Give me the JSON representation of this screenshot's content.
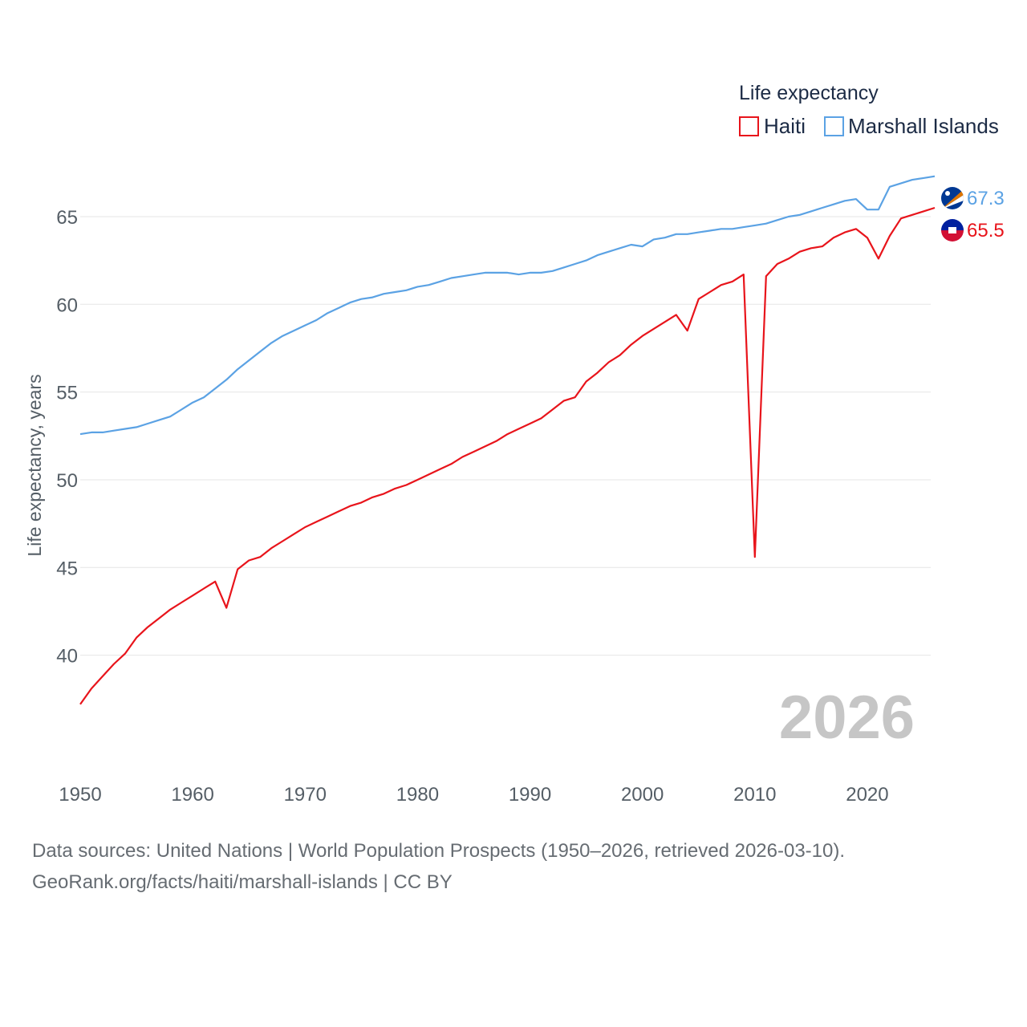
{
  "chart_data": {
    "type": "line",
    "legend": {
      "title": "Life expectancy",
      "position": "top-right"
    },
    "ylabel": "Life expectancy, years",
    "xlabel": "",
    "ylim": [
      35.5,
      68.2
    ],
    "xlim": [
      1950,
      2026
    ],
    "xticks": [
      1950,
      1960,
      1970,
      1980,
      1990,
      2000,
      2010,
      2020
    ],
    "yticks": [
      40,
      45,
      50,
      55,
      60,
      65
    ],
    "grid": true,
    "current_year": "2026",
    "x": [
      1950,
      1951,
      1952,
      1953,
      1954,
      1955,
      1956,
      1957,
      1958,
      1959,
      1960,
      1961,
      1962,
      1963,
      1964,
      1965,
      1966,
      1967,
      1968,
      1969,
      1970,
      1971,
      1972,
      1973,
      1974,
      1975,
      1976,
      1977,
      1978,
      1979,
      1980,
      1981,
      1982,
      1983,
      1984,
      1985,
      1986,
      1987,
      1988,
      1989,
      1990,
      1991,
      1992,
      1993,
      1994,
      1995,
      1996,
      1997,
      1998,
      1999,
      2000,
      2001,
      2002,
      2003,
      2004,
      2005,
      2006,
      2007,
      2008,
      2009,
      2010,
      2011,
      2012,
      2013,
      2014,
      2015,
      2016,
      2017,
      2018,
      2019,
      2020,
      2021,
      2022,
      2023,
      2024,
      2025,
      2026
    ],
    "series": [
      {
        "name": "Haiti",
        "color": "#e8141b",
        "end_label": "65.5",
        "flag_icon": "haiti-flag-icon",
        "values": [
          37.2,
          38.1,
          38.8,
          39.5,
          40.1,
          41.0,
          41.6,
          42.1,
          42.6,
          43.0,
          43.4,
          43.8,
          44.2,
          42.7,
          44.9,
          45.4,
          45.6,
          46.1,
          46.5,
          46.9,
          47.3,
          47.6,
          47.9,
          48.2,
          48.5,
          48.7,
          49.0,
          49.2,
          49.5,
          49.7,
          50.0,
          50.3,
          50.6,
          50.9,
          51.3,
          51.6,
          51.9,
          52.2,
          52.6,
          52.9,
          53.2,
          53.5,
          54.0,
          54.5,
          54.7,
          55.6,
          56.1,
          56.7,
          57.1,
          57.7,
          58.2,
          58.6,
          59.0,
          59.4,
          58.5,
          60.3,
          60.7,
          61.1,
          61.3,
          61.7,
          45.6,
          61.6,
          62.3,
          62.6,
          63.0,
          63.2,
          63.3,
          63.8,
          64.1,
          64.3,
          63.8,
          62.6,
          63.9,
          64.9,
          65.1,
          65.3,
          65.5
        ]
      },
      {
        "name": "Marshall Islands",
        "color": "#5ba2e4",
        "end_label": "67.3",
        "flag_icon": "marshall-islands-flag-icon",
        "values": [
          52.6,
          52.7,
          52.7,
          52.8,
          52.9,
          53.0,
          53.2,
          53.4,
          53.6,
          54.0,
          54.4,
          54.7,
          55.2,
          55.7,
          56.3,
          56.8,
          57.3,
          57.8,
          58.2,
          58.5,
          58.8,
          59.1,
          59.5,
          59.8,
          60.1,
          60.3,
          60.4,
          60.6,
          60.7,
          60.8,
          61.0,
          61.1,
          61.3,
          61.5,
          61.6,
          61.7,
          61.8,
          61.8,
          61.8,
          61.7,
          61.8,
          61.8,
          61.9,
          62.1,
          62.3,
          62.5,
          62.8,
          63.0,
          63.2,
          63.4,
          63.3,
          63.7,
          63.8,
          64.0,
          64.0,
          64.1,
          64.2,
          64.3,
          64.3,
          64.4,
          64.5,
          64.6,
          64.8,
          65.0,
          65.1,
          65.3,
          65.5,
          65.7,
          65.9,
          66.0,
          65.4,
          65.4,
          66.7,
          66.9,
          67.1,
          67.2,
          67.3
        ]
      }
    ]
  },
  "footer": {
    "line1": "Data sources: United Nations | World Population Prospects (1950–2026, retrieved 2026-03-10).",
    "line2": "GeoRank.org/facts/haiti/marshall-islands | CC BY"
  }
}
